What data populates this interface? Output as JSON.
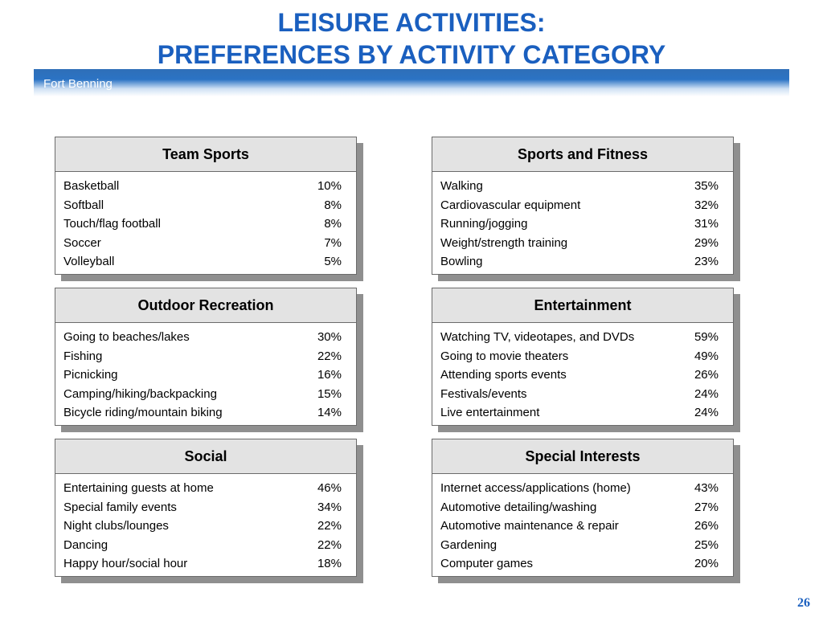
{
  "header": {
    "title_line1": "LEISURE ACTIVITIES:",
    "title_line2": "PREFERENCES BY ACTIVITY CATEGORY",
    "banner": "Fort Benning"
  },
  "categories": [
    {
      "title": "Team Sports",
      "items": [
        {
          "label": "Basketball",
          "value": "10%"
        },
        {
          "label": "Softball",
          "value": "8%"
        },
        {
          "label": "Touch/flag football",
          "value": "8%"
        },
        {
          "label": "Soccer",
          "value": "7%"
        },
        {
          "label": "Volleyball",
          "value": "5%"
        }
      ]
    },
    {
      "title": "Sports and Fitness",
      "items": [
        {
          "label": "Walking",
          "value": "35%"
        },
        {
          "label": "Cardiovascular equipment",
          "value": "32%"
        },
        {
          "label": "Running/jogging",
          "value": "31%"
        },
        {
          "label": "Weight/strength training",
          "value": "29%"
        },
        {
          "label": "Bowling",
          "value": "23%"
        }
      ]
    },
    {
      "title": "Outdoor Recreation",
      "items": [
        {
          "label": "Going to beaches/lakes",
          "value": "30%"
        },
        {
          "label": "Fishing",
          "value": "22%"
        },
        {
          "label": "Picnicking",
          "value": "16%"
        },
        {
          "label": "Camping/hiking/backpacking",
          "value": "15%"
        },
        {
          "label": "Bicycle riding/mountain biking",
          "value": "14%"
        }
      ]
    },
    {
      "title": "Entertainment",
      "items": [
        {
          "label": "Watching TV, videotapes, and DVDs",
          "value": "59%"
        },
        {
          "label": "Going to movie theaters",
          "value": "49%"
        },
        {
          "label": "Attending sports events",
          "value": "26%"
        },
        {
          "label": "Festivals/events",
          "value": "24%"
        },
        {
          "label": "Live entertainment",
          "value": "24%"
        }
      ]
    },
    {
      "title": "Social",
      "items": [
        {
          "label": "Entertaining guests at home",
          "value": "46%"
        },
        {
          "label": "Special family events",
          "value": "34%"
        },
        {
          "label": "Night clubs/lounges",
          "value": "22%"
        },
        {
          "label": "Dancing",
          "value": "22%"
        },
        {
          "label": "Happy hour/social hour",
          "value": "18%"
        }
      ]
    },
    {
      "title": "Special Interests",
      "items": [
        {
          "label": "Internet access/applications (home)",
          "value": "43%"
        },
        {
          "label": "Automotive detailing/washing",
          "value": "27%"
        },
        {
          "label": "Automotive maintenance & repair",
          "value": "26%"
        },
        {
          "label": "Gardening",
          "value": "25%"
        },
        {
          "label": "Computer games",
          "value": "20%"
        }
      ]
    }
  ],
  "footer": {
    "page_number": "26"
  }
}
